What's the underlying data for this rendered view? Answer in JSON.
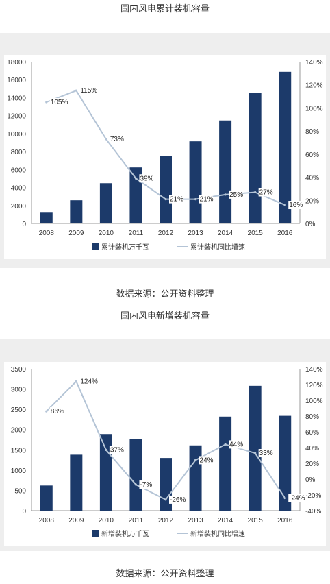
{
  "captions": {
    "title1": "国内风电累计装机容量",
    "source1": "数据来源：公开资料整理",
    "title2": "国内风电新增装机容量",
    "source2": "数据来源：公开资料整理"
  },
  "colors": {
    "bar": "#1c3a6a",
    "line": "#b4c4d6",
    "panel_bg": "#eeeeee",
    "plot_bg": "#ffffff"
  },
  "chart_data": [
    {
      "type": "bar",
      "title": "国内风电累计装机容量",
      "categories": [
        "2008",
        "2009",
        "2010",
        "2011",
        "2012",
        "2013",
        "2014",
        "2015",
        "2016"
      ],
      "series": [
        {
          "name": "累计装机万千瓦",
          "type": "bar",
          "axis": "left",
          "values": [
            1200,
            2580,
            4480,
            6240,
            7530,
            9140,
            11460,
            14540,
            16870
          ]
        },
        {
          "name": "累计装机同比增速",
          "type": "line",
          "axis": "right",
          "values": [
            105,
            115,
            73,
            39,
            21,
            21,
            25,
            27,
            16
          ],
          "labels": [
            "105%",
            "115%",
            "73%",
            "39%",
            "21%",
            "21%",
            "25%",
            "27%",
            "16%"
          ]
        }
      ],
      "ylim_left": [
        0,
        18000
      ],
      "yticks_left": [
        "0",
        "2000",
        "4000",
        "6000",
        "8000",
        "10000",
        "12000",
        "14000",
        "16000",
        "18000"
      ],
      "ylim_right": [
        0,
        140
      ],
      "yticks_right": [
        "0%",
        "20%",
        "40%",
        "60%",
        "80%",
        "100%",
        "120%",
        "140%"
      ],
      "grid": false,
      "legend": "bottom"
    },
    {
      "type": "bar",
      "title": "国内风电新增装机容量",
      "categories": [
        "2008",
        "2009",
        "2010",
        "2011",
        "2012",
        "2013",
        "2014",
        "2015",
        "2016"
      ],
      "series": [
        {
          "name": "新增装机万千瓦",
          "type": "bar",
          "axis": "left",
          "values": [
            620,
            1380,
            1890,
            1760,
            1300,
            1610,
            2320,
            3080,
            2340
          ]
        },
        {
          "name": "新增装机同比增速",
          "type": "line",
          "axis": "right",
          "values": [
            86,
            124,
            37,
            -7,
            -26,
            24,
            44,
            33,
            -24
          ],
          "labels": [
            "86%",
            "124%",
            "37%",
            "-7%",
            "-26%",
            "24%",
            "44%",
            "33%",
            "-24%"
          ]
        }
      ],
      "ylim_left": [
        0,
        3500
      ],
      "yticks_left": [
        "0",
        "500",
        "1000",
        "1500",
        "2000",
        "2500",
        "3000",
        "3500"
      ],
      "ylim_right": [
        -40,
        140
      ],
      "yticks_right": [
        "-40%",
        "-20%",
        "0%",
        "20%",
        "40%",
        "60%",
        "80%",
        "100%",
        "120%",
        "140%"
      ],
      "grid": false,
      "legend": "bottom"
    }
  ]
}
